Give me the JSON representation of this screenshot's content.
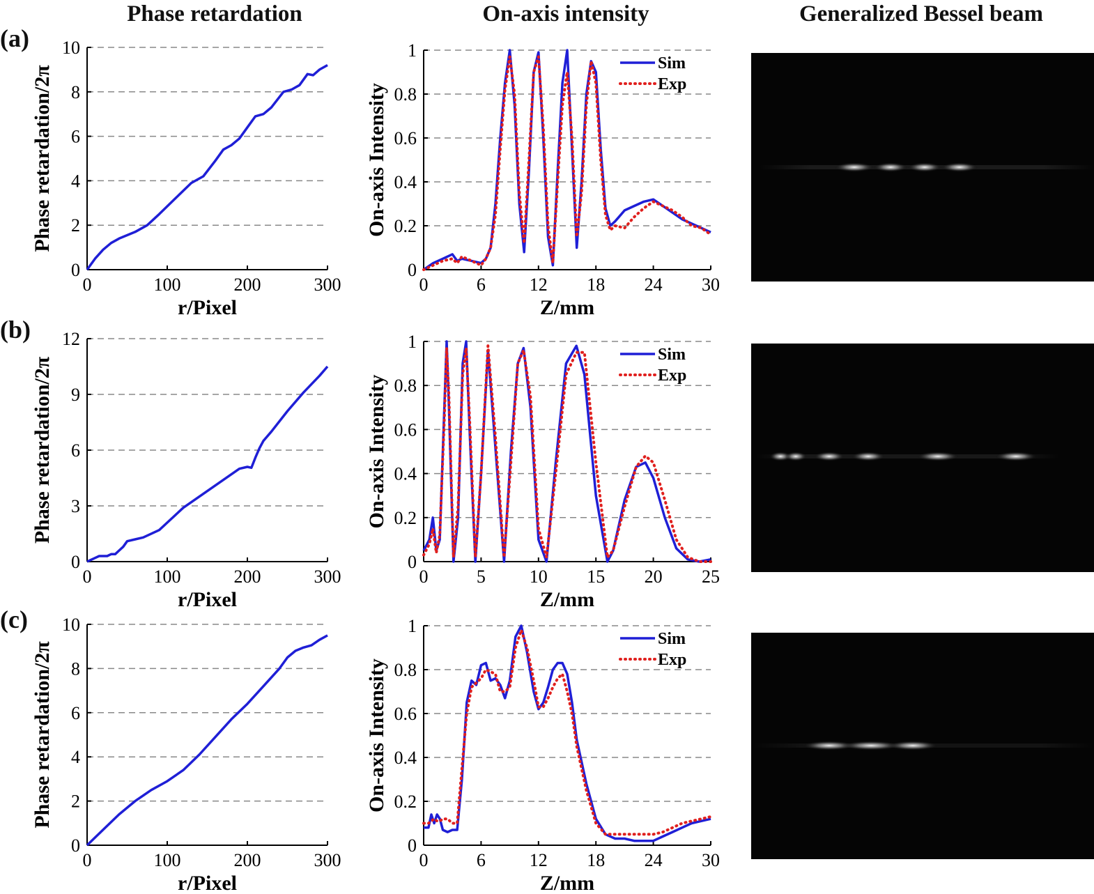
{
  "column_titles": {
    "phase": "Phase retardation",
    "intensity": "On-axis intensity",
    "beam": "Generalized Bessel beam"
  },
  "rows": [
    {
      "label": "(a)"
    },
    {
      "label": "(b)"
    },
    {
      "label": "(c)"
    }
  ],
  "colors": {
    "sim": "#1f1fd6",
    "exp": "#e0201e",
    "grid": "#888888",
    "beam_background": "#050505"
  },
  "beam_images": [
    {
      "panel": "a",
      "description_icon": "bessel-beam-image"
    },
    {
      "panel": "b",
      "description_icon": "bessel-beam-image"
    },
    {
      "panel": "c",
      "description_icon": "bessel-beam-image"
    }
  ],
  "chart_data": [
    {
      "id": "phase-a",
      "type": "line",
      "xlabel": "r/Pixel",
      "ylabel": "Phase retardation/2π",
      "xlim": [
        0,
        300
      ],
      "ylim": [
        0,
        10
      ],
      "xticks": [
        0,
        100,
        200,
        300
      ],
      "yticks": [
        0,
        2,
        4,
        6,
        8,
        10
      ],
      "grid": "horizontal-dashed",
      "series": [
        {
          "color": "sim",
          "style": "solid",
          "x": [
            0,
            10,
            20,
            30,
            40,
            60,
            75,
            90,
            110,
            130,
            145,
            160,
            170,
            180,
            190,
            200,
            210,
            220,
            230,
            245,
            255,
            265,
            275,
            282,
            290,
            300
          ],
          "y": [
            0,
            0.5,
            0.9,
            1.2,
            1.4,
            1.7,
            2.0,
            2.5,
            3.2,
            3.9,
            4.2,
            4.9,
            5.4,
            5.6,
            5.9,
            6.4,
            6.9,
            7.0,
            7.3,
            8.0,
            8.1,
            8.3,
            8.8,
            8.75,
            9.0,
            9.2
          ]
        }
      ]
    },
    {
      "id": "intensity-a",
      "type": "line",
      "xlabel": "Z/mm",
      "ylabel": "On-axis Intensity",
      "xlim": [
        0,
        30
      ],
      "ylim": [
        0,
        1
      ],
      "xticks": [
        0,
        6,
        12,
        18,
        24,
        30
      ],
      "yticks": [
        0,
        0.2,
        0.4,
        0.6,
        0.8,
        1
      ],
      "grid": "horizontal-dashed",
      "legend": "top-right",
      "series": [
        {
          "name": "Sim",
          "color": "sim",
          "style": "solid",
          "x": [
            0,
            1,
            2,
            3,
            3.5,
            4,
            5,
            6,
            6.5,
            7,
            7.5,
            8,
            8.5,
            9,
            9.5,
            10,
            10.5,
            11,
            11.5,
            12,
            12.5,
            13,
            13.5,
            14,
            14.5,
            15,
            15.5,
            16,
            16.5,
            17,
            17.5,
            18,
            18.5,
            19,
            19.5,
            20,
            21,
            22,
            23,
            24,
            25,
            26,
            27,
            28,
            29,
            30
          ],
          "y": [
            0,
            0.03,
            0.05,
            0.07,
            0.04,
            0.05,
            0.04,
            0.03,
            0.05,
            0.1,
            0.3,
            0.6,
            0.85,
            1.0,
            0.75,
            0.3,
            0.08,
            0.45,
            0.9,
            0.99,
            0.6,
            0.15,
            0.02,
            0.45,
            0.85,
            1.0,
            0.55,
            0.1,
            0.4,
            0.8,
            0.95,
            0.9,
            0.55,
            0.28,
            0.2,
            0.22,
            0.27,
            0.29,
            0.31,
            0.32,
            0.29,
            0.26,
            0.23,
            0.21,
            0.19,
            0.17
          ]
        },
        {
          "name": "Exp",
          "color": "exp",
          "style": "dotted",
          "x": [
            0,
            1,
            2,
            3,
            3.5,
            4,
            5,
            6,
            6.5,
            7,
            7.5,
            8,
            8.5,
            9,
            9.5,
            10,
            10.5,
            11,
            11.5,
            12,
            12.5,
            13,
            13.5,
            14,
            14.5,
            15,
            15.5,
            16,
            16.5,
            17,
            17.5,
            18,
            18.5,
            19,
            19.5,
            20,
            21,
            22,
            23,
            24,
            25,
            26,
            27,
            28,
            29,
            30
          ],
          "y": [
            0,
            0.02,
            0.04,
            0.05,
            0.03,
            0.06,
            0.04,
            0.02,
            0.05,
            0.1,
            0.25,
            0.55,
            0.82,
            0.97,
            0.8,
            0.35,
            0.12,
            0.5,
            0.9,
            0.97,
            0.65,
            0.2,
            0.03,
            0.4,
            0.75,
            0.9,
            0.6,
            0.15,
            0.35,
            0.75,
            0.95,
            0.85,
            0.5,
            0.25,
            0.18,
            0.2,
            0.19,
            0.24,
            0.28,
            0.31,
            0.29,
            0.27,
            0.24,
            0.2,
            0.19,
            0.16
          ]
        }
      ]
    },
    {
      "id": "phase-b",
      "type": "line",
      "xlabel": "r/Pixel",
      "ylabel": "Phase retardation/2π",
      "xlim": [
        0,
        300
      ],
      "ylim": [
        0,
        12
      ],
      "xticks": [
        0,
        100,
        200,
        300
      ],
      "yticks": [
        0,
        3,
        6,
        9,
        12
      ],
      "grid": "horizontal-dashed",
      "series": [
        {
          "color": "sim",
          "style": "solid",
          "x": [
            0,
            10,
            15,
            25,
            30,
            35,
            40,
            45,
            50,
            60,
            70,
            90,
            100,
            120,
            140,
            160,
            180,
            190,
            200,
            205,
            210,
            215,
            220,
            230,
            250,
            270,
            290,
            300
          ],
          "y": [
            0,
            0.2,
            0.3,
            0.3,
            0.4,
            0.4,
            0.6,
            0.8,
            1.1,
            1.2,
            1.3,
            1.7,
            2.1,
            2.9,
            3.5,
            4.1,
            4.7,
            5.0,
            5.1,
            5.05,
            5.6,
            6.1,
            6.5,
            7.0,
            8.1,
            9.1,
            10.0,
            10.5
          ]
        }
      ]
    },
    {
      "id": "intensity-b",
      "type": "line",
      "xlabel": "Z/mm",
      "ylabel": "On-axis Intensity",
      "xlim": [
        0,
        25
      ],
      "ylim": [
        0,
        1
      ],
      "xticks": [
        0,
        5,
        10,
        15,
        20,
        25
      ],
      "yticks": [
        0,
        0.2,
        0.4,
        0.6,
        0.8,
        1
      ],
      "grid": "horizontal-dashed",
      "legend": "top-right",
      "series": [
        {
          "name": "Sim",
          "color": "sim",
          "style": "solid",
          "x": [
            0,
            0.5,
            0.8,
            1.1,
            1.4,
            1.8,
            2.0,
            2.2,
            2.6,
            3.0,
            3.4,
            3.7,
            4.0,
            4.5,
            5.0,
            5.6,
            6.2,
            7.0,
            7.6,
            8.2,
            8.7,
            9.3,
            10.0,
            10.7,
            11.5,
            12.4,
            13.3,
            14.0,
            15.0,
            16.0,
            16.5,
            17.5,
            18.5,
            19.3,
            20.0,
            21.0,
            22.0,
            23.0,
            24.0,
            25.0
          ],
          "y": [
            0.05,
            0.1,
            0.2,
            0.05,
            0.1,
            0.7,
            1.0,
            0.7,
            0.0,
            0.2,
            0.9,
            1.0,
            0.6,
            0.0,
            0.4,
            0.96,
            0.55,
            0.0,
            0.5,
            0.9,
            0.97,
            0.7,
            0.1,
            0.0,
            0.45,
            0.9,
            0.98,
            0.85,
            0.3,
            0.0,
            0.05,
            0.28,
            0.43,
            0.45,
            0.38,
            0.2,
            0.06,
            0.01,
            0.0,
            0.01
          ]
        },
        {
          "name": "Exp",
          "color": "exp",
          "style": "dotted",
          "x": [
            0,
            0.5,
            0.8,
            1.1,
            1.4,
            1.8,
            2.0,
            2.2,
            2.6,
            3.0,
            3.4,
            3.7,
            4.0,
            4.5,
            5.0,
            5.6,
            6.2,
            7.0,
            7.6,
            8.2,
            8.7,
            9.3,
            10.0,
            10.7,
            11.5,
            12.4,
            13.3,
            14.0,
            15.0,
            16.0,
            16.5,
            17.5,
            18.5,
            19.3,
            20.0,
            21.0,
            22.0,
            23.0,
            24.0,
            25.0
          ],
          "y": [
            0.03,
            0.08,
            0.15,
            0.04,
            0.12,
            0.65,
            0.97,
            0.75,
            0.02,
            0.25,
            0.85,
            0.97,
            0.65,
            0.02,
            0.4,
            0.98,
            0.6,
            0.02,
            0.45,
            0.9,
            0.96,
            0.75,
            0.15,
            0.02,
            0.4,
            0.85,
            0.95,
            0.95,
            0.45,
            0.02,
            0.05,
            0.25,
            0.43,
            0.48,
            0.45,
            0.28,
            0.1,
            0.02,
            0.0,
            0.0
          ]
        }
      ]
    },
    {
      "id": "phase-c",
      "type": "line",
      "xlabel": "r/Pixel",
      "ylabel": "Phase retardation/2π",
      "xlim": [
        0,
        300
      ],
      "ylim": [
        0,
        10
      ],
      "xticks": [
        0,
        100,
        200,
        300
      ],
      "yticks": [
        0,
        2,
        4,
        6,
        8,
        10
      ],
      "grid": "horizontal-dashed",
      "series": [
        {
          "color": "sim",
          "style": "solid",
          "x": [
            0,
            20,
            40,
            60,
            80,
            100,
            120,
            140,
            160,
            180,
            200,
            220,
            240,
            250,
            260,
            270,
            280,
            290,
            300
          ],
          "y": [
            0,
            0.7,
            1.4,
            2.0,
            2.5,
            2.9,
            3.4,
            4.1,
            4.9,
            5.7,
            6.4,
            7.2,
            8.0,
            8.5,
            8.8,
            8.95,
            9.05,
            9.3,
            9.5
          ]
        }
      ]
    },
    {
      "id": "intensity-c",
      "type": "line",
      "xlabel": "Z/mm",
      "ylabel": "On-axis Intensity",
      "xlim": [
        0,
        30
      ],
      "ylim": [
        0,
        1
      ],
      "xticks": [
        0,
        6,
        12,
        18,
        24,
        30
      ],
      "yticks": [
        0,
        0.2,
        0.4,
        0.6,
        0.8,
        1
      ],
      "grid": "horizontal-dashed",
      "legend": "top-right",
      "series": [
        {
          "name": "Sim",
          "color": "sim",
          "style": "solid",
          "x": [
            0,
            0.5,
            0.8,
            1.1,
            1.4,
            1.7,
            2.0,
            2.5,
            3.0,
            3.5,
            4.0,
            4.5,
            5.0,
            5.5,
            6.0,
            6.5,
            7.0,
            7.5,
            8.0,
            8.5,
            9.0,
            9.6,
            10.2,
            10.8,
            11.5,
            12.0,
            12.5,
            13.0,
            13.5,
            14.0,
            14.5,
            15.0,
            15.5,
            16.0,
            17.0,
            18.0,
            19.0,
            20.0,
            21.0,
            22.0,
            23.0,
            24.0,
            25.0,
            26.0,
            27.0,
            28.0,
            29.0,
            30.0
          ],
          "y": [
            0.08,
            0.08,
            0.14,
            0.1,
            0.14,
            0.12,
            0.07,
            0.06,
            0.07,
            0.07,
            0.3,
            0.65,
            0.75,
            0.73,
            0.82,
            0.83,
            0.75,
            0.76,
            0.73,
            0.67,
            0.75,
            0.95,
            1.0,
            0.88,
            0.7,
            0.62,
            0.65,
            0.72,
            0.8,
            0.83,
            0.83,
            0.78,
            0.65,
            0.48,
            0.28,
            0.12,
            0.05,
            0.03,
            0.03,
            0.02,
            0.02,
            0.02,
            0.04,
            0.06,
            0.08,
            0.1,
            0.11,
            0.12
          ]
        },
        {
          "name": "Exp",
          "color": "exp",
          "style": "dotted",
          "x": [
            0,
            0.5,
            0.8,
            1.1,
            1.4,
            1.7,
            2.0,
            2.5,
            3.0,
            3.5,
            4.0,
            4.5,
            5.0,
            5.5,
            6.0,
            6.5,
            7.0,
            7.5,
            8.0,
            8.5,
            9.0,
            9.6,
            10.2,
            10.8,
            11.5,
            12.0,
            12.5,
            13.0,
            13.5,
            14.0,
            14.5,
            15.0,
            15.5,
            16.0,
            17.0,
            18.0,
            19.0,
            20.0,
            21.0,
            22.0,
            23.0,
            24.0,
            25.0,
            26.0,
            27.0,
            28.0,
            29.0,
            30.0
          ],
          "y": [
            0.1,
            0.1,
            0.11,
            0.12,
            0.11,
            0.11,
            0.12,
            0.12,
            0.1,
            0.1,
            0.35,
            0.6,
            0.72,
            0.74,
            0.76,
            0.8,
            0.79,
            0.78,
            0.7,
            0.7,
            0.72,
            0.9,
            0.98,
            0.9,
            0.75,
            0.63,
            0.63,
            0.67,
            0.72,
            0.76,
            0.78,
            0.7,
            0.6,
            0.45,
            0.25,
            0.1,
            0.05,
            0.05,
            0.05,
            0.05,
            0.05,
            0.05,
            0.06,
            0.08,
            0.1,
            0.11,
            0.12,
            0.13
          ]
        }
      ]
    }
  ]
}
